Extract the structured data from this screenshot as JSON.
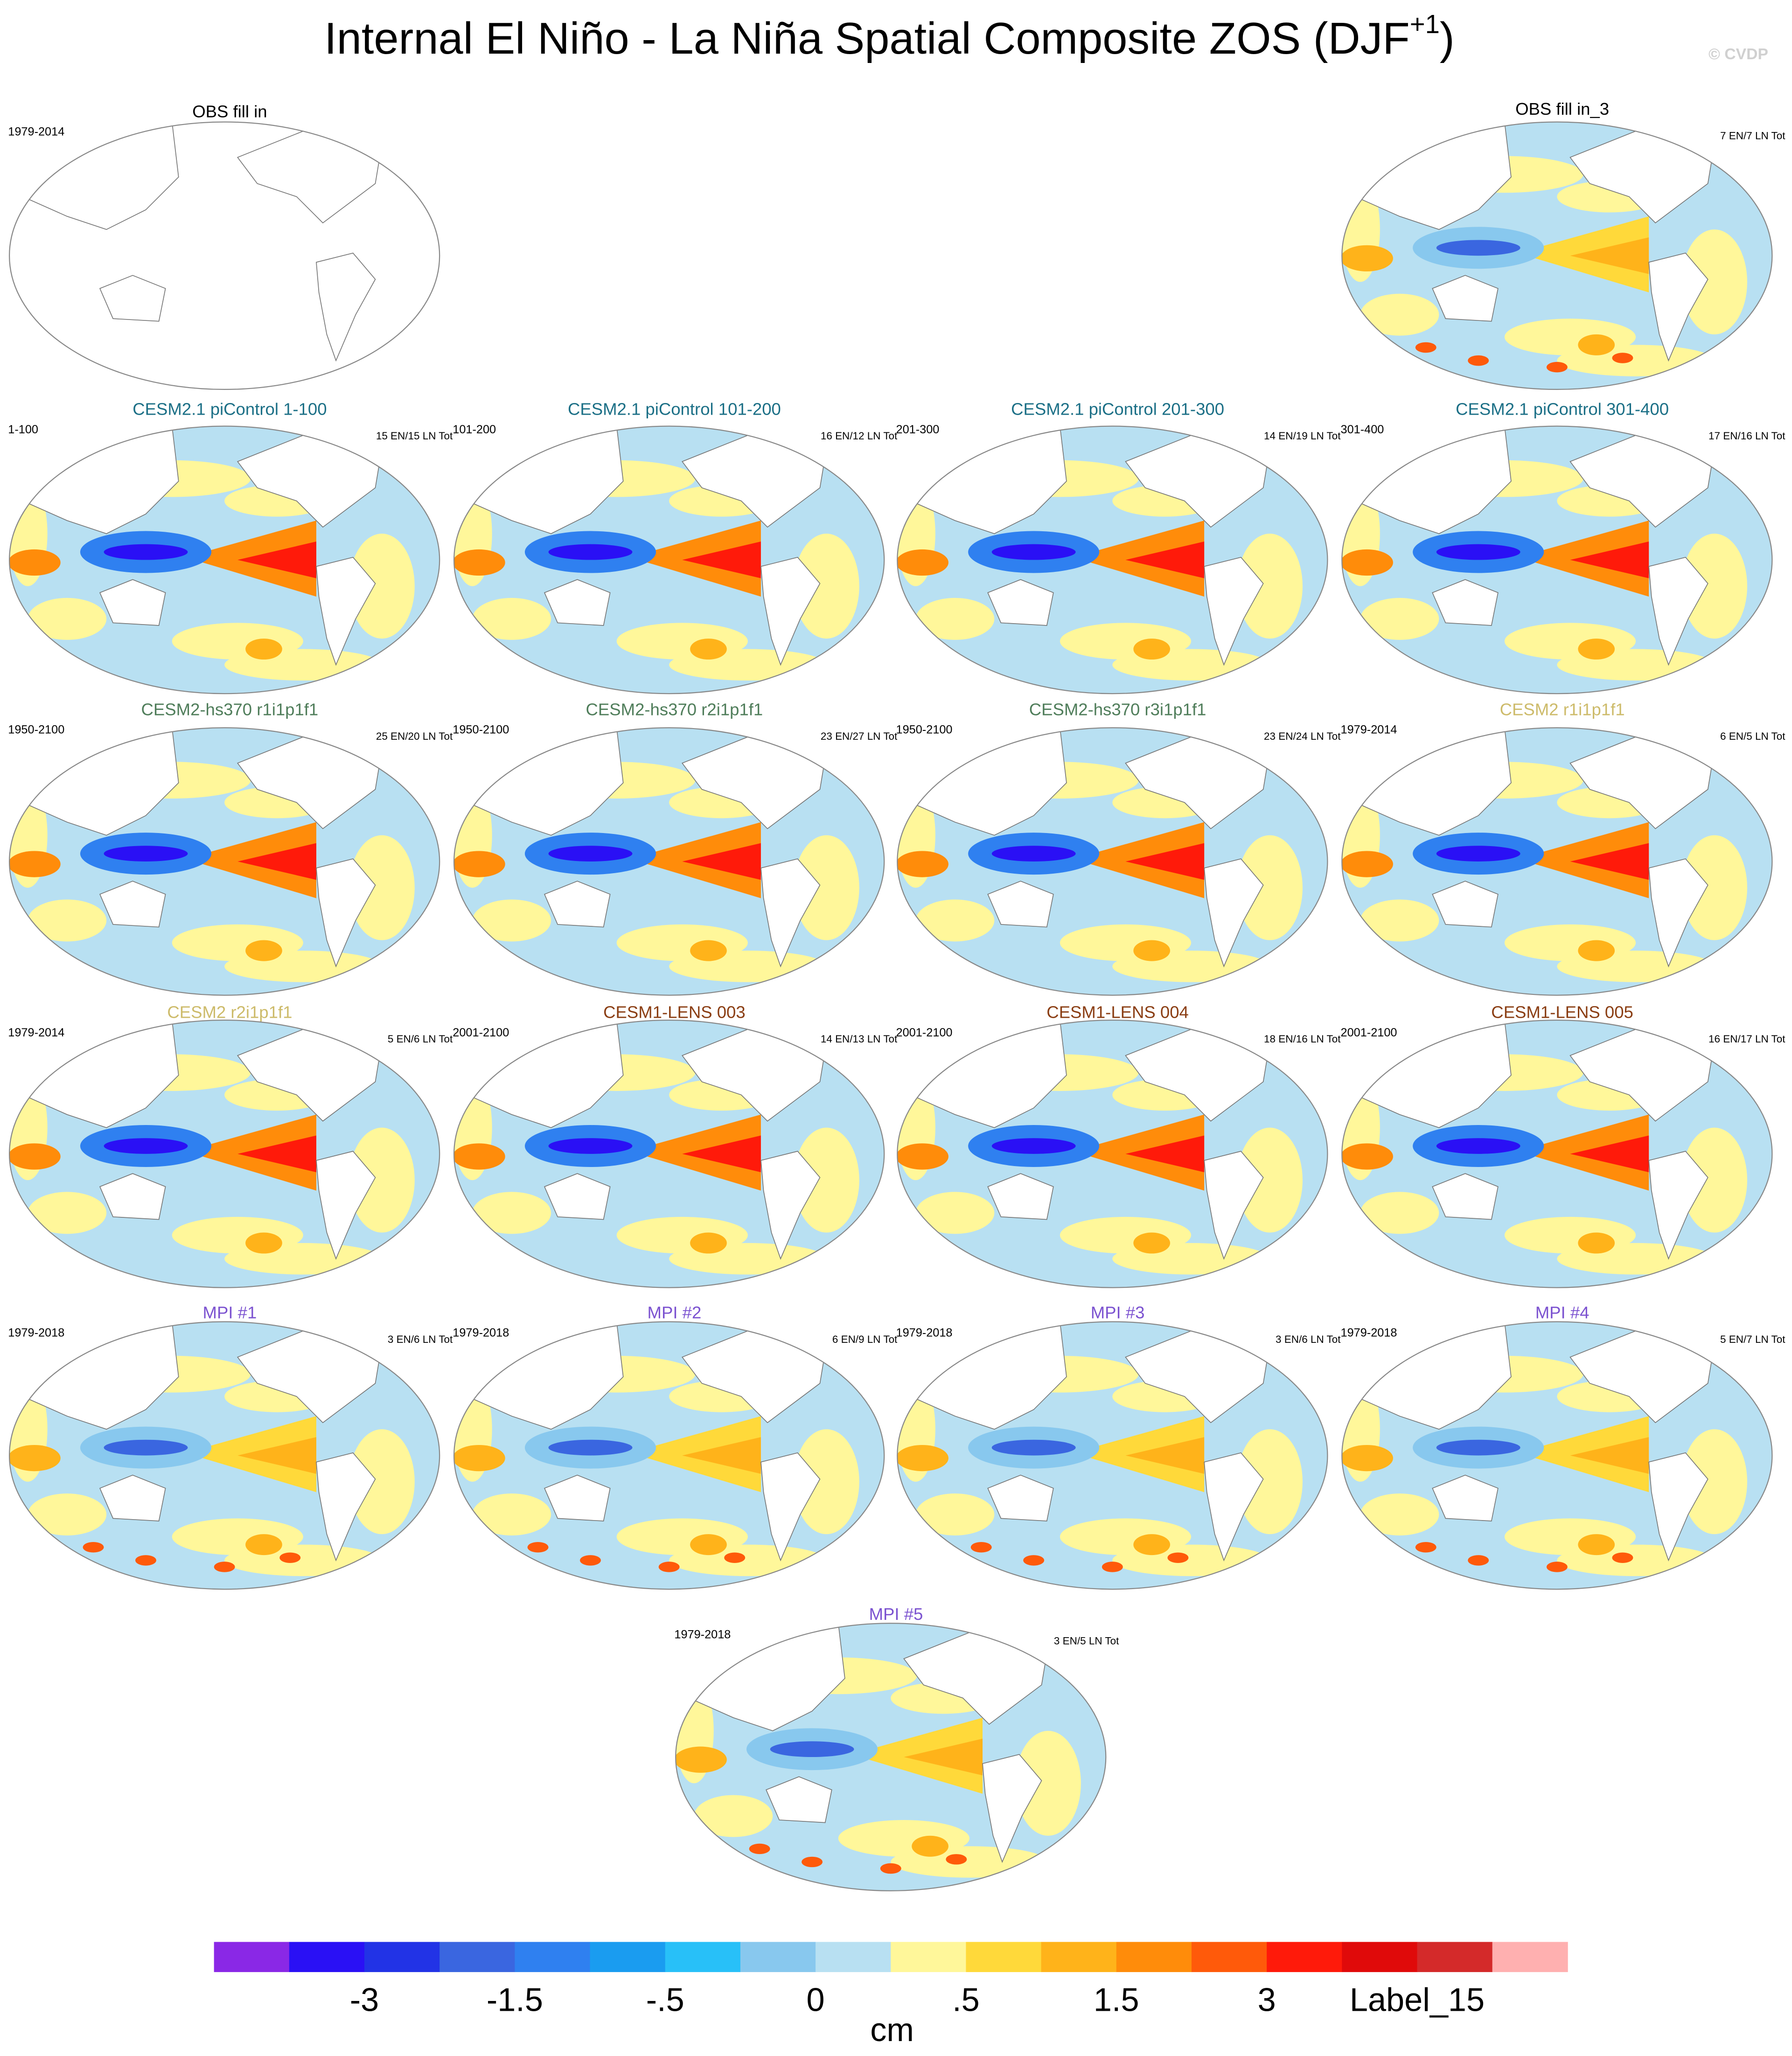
{
  "title": "Internal El Niño - La Niña Spatial Composite ZOS (DJF",
  "title_superscript": "+1",
  "title_suffix": ")",
  "watermark": "© CVDP",
  "panels": [
    {
      "title": "OBS fill in",
      "title_color": "#000000",
      "left_label": "1979-2014"
    },
    {
      "title": "OBS fill in_3",
      "title_color": "#000000",
      "right_label": "7 EN/7 LN Tot"
    },
    {
      "title": "CESM2.1 piControl 1-100",
      "title_color": "#1b6f86",
      "left_label": "1-100",
      "right_label": "15 EN/15 LN Tot"
    },
    {
      "title": "CESM2.1 piControl 101-200",
      "title_color": "#1b6f86",
      "left_label": "101-200",
      "right_label": "16 EN/12 LN Tot"
    },
    {
      "title": "CESM2.1 piControl 201-300",
      "title_color": "#1b6f86",
      "left_label": "201-300",
      "right_label": "14 EN/19 LN Tot"
    },
    {
      "title": "CESM2.1 piControl 301-400",
      "title_color": "#1b6f86",
      "left_label": "301-400",
      "right_label": "17 EN/16 LN Tot"
    },
    {
      "title": "CESM2-hs370 r1i1p1f1",
      "title_color": "#4f7d5a",
      "left_label": "1950-2100",
      "right_label": "25 EN/20 LN Tot"
    },
    {
      "title": "CESM2-hs370 r2i1p1f1",
      "title_color": "#4f7d5a",
      "left_label": "1950-2100",
      "right_label": "23 EN/27 LN Tot"
    },
    {
      "title": "CESM2-hs370 r3i1p1f1",
      "title_color": "#4f7d5a",
      "left_label": "1950-2100",
      "right_label": "23 EN/24 LN Tot"
    },
    {
      "title": "CESM2 r1i1p1f1",
      "title_color": "#cdbb6a",
      "left_label": "1979-2014",
      "right_label": "6 EN/5 LN Tot"
    },
    {
      "title": "CESM2 r2i1p1f1",
      "title_color": "#cdbb6a",
      "left_label": "1979-2014",
      "right_label": "5 EN/6 LN Tot"
    },
    {
      "title": "CESM1-LENS 003",
      "title_color": "#8a3d12",
      "left_label": "2001-2100",
      "right_label": "14 EN/13 LN Tot"
    },
    {
      "title": "CESM1-LENS 004",
      "title_color": "#8a3d12",
      "left_label": "2001-2100",
      "right_label": "18 EN/16 LN Tot"
    },
    {
      "title": "CESM1-LENS 005",
      "title_color": "#8a3d12",
      "left_label": "2001-2100",
      "right_label": "16 EN/17 LN Tot"
    },
    {
      "title": "MPI #1",
      "title_color": "#7b52d0",
      "left_label": "1979-2018",
      "right_label": "3 EN/6 LN Tot"
    },
    {
      "title": "MPI #2",
      "title_color": "#7b52d0",
      "left_label": "1979-2018",
      "right_label": "6 EN/9 LN Tot"
    },
    {
      "title": "MPI #3",
      "title_color": "#7b52d0",
      "left_label": "1979-2018",
      "right_label": "3 EN/6 LN Tot"
    },
    {
      "title": "MPI #4",
      "title_color": "#7b52d0",
      "left_label": "1979-2018",
      "right_label": "5 EN/7 LN Tot"
    },
    {
      "title": "MPI #5",
      "title_color": "#7b52d0",
      "left_label": "1979-2018",
      "right_label": "3 EN/5 LN Tot"
    }
  ],
  "colorbar": {
    "colors": [
      "#8a28e6",
      "#2a10f5",
      "#2233e6",
      "#3a66e0",
      "#2f80f0",
      "#1a9cf0",
      "#28c0f8",
      "#88c8ee",
      "#b8e0f2",
      "#fff79a",
      "#ffd93a",
      "#ffb31a",
      "#ff8c0a",
      "#ff5a0a",
      "#ff1a0a",
      "#e00a0a",
      "#d42a2a",
      "#ffb0b0"
    ],
    "labels": [
      "-3",
      "-1.5",
      "-.5",
      "0",
      ".5",
      "1.5",
      "3",
      "Label_15"
    ],
    "units": "cm"
  }
}
